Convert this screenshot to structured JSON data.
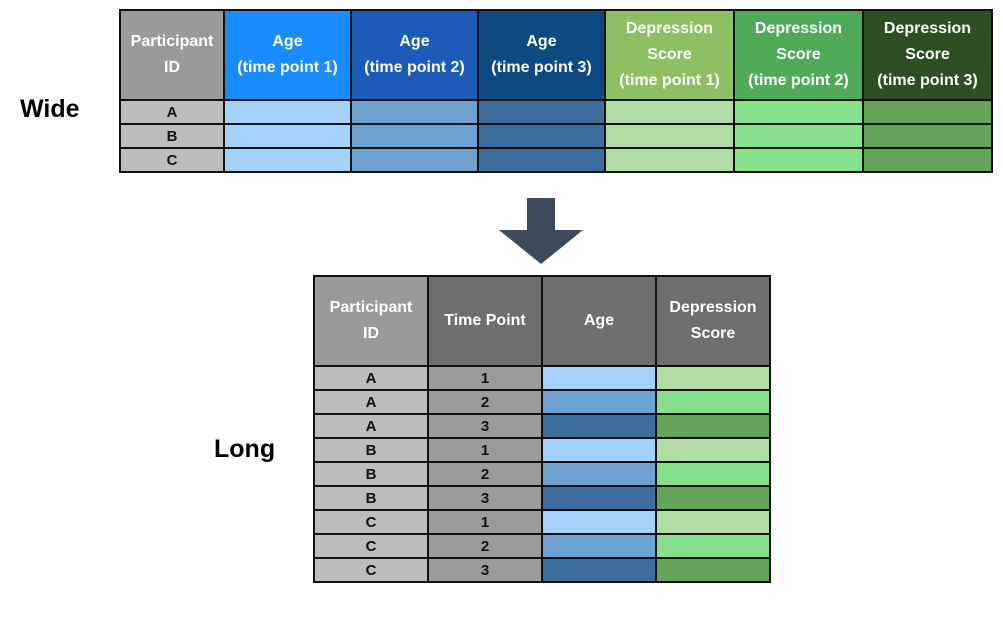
{
  "wide": {
    "label": "Wide",
    "headers": [
      {
        "text": "Participant\nID",
        "color": "#9a9a9a"
      },
      {
        "text": "Age\n(time point 1)",
        "color": "#1a8cff"
      },
      {
        "text": "Age\n(time point 2)",
        "color": "#1a5cb8"
      },
      {
        "text": "Age\n(time point 3)",
        "color": "#0d4a82"
      },
      {
        "text": "Depression\nScore\n(time point 1)",
        "color": "#8cc063"
      },
      {
        "text": "Depression\nScore\n(time point 2)",
        "color": "#4faa5a"
      },
      {
        "text": "Depression\nScore\n(time point 3)",
        "color": "#2e4f24"
      }
    ],
    "row_colors": [
      "#bdbdbd",
      "#a3d1fb",
      "#6ea1cf",
      "#3c6d9c",
      "#b2dca6",
      "#85df8b",
      "#64a35a"
    ],
    "rows": [
      "A",
      "B",
      "C"
    ]
  },
  "long": {
    "label": "Long",
    "headers": [
      {
        "text": "Participant\nID",
        "color": "#9a9a9a"
      },
      {
        "text": "Time Point",
        "color": "#6e6e6e"
      },
      {
        "text": "Age",
        "color": "#6e6e6e"
      },
      {
        "text": "Depression\nScore",
        "color": "#6e6e6e"
      }
    ],
    "id_color": "#bdbdbd",
    "time_color": "#9c9c9c",
    "age_colors": {
      "1": "#a3d1fb",
      "2": "#6ea1cf",
      "3": "#3c6d9c"
    },
    "dep_colors": {
      "1": "#b2dca6",
      "2": "#85df8b",
      "3": "#64a35a"
    },
    "rows": [
      {
        "id": "A",
        "tp": "1"
      },
      {
        "id": "A",
        "tp": "2"
      },
      {
        "id": "A",
        "tp": "3"
      },
      {
        "id": "B",
        "tp": "1"
      },
      {
        "id": "B",
        "tp": "2"
      },
      {
        "id": "B",
        "tp": "3"
      },
      {
        "id": "C",
        "tp": "1"
      },
      {
        "id": "C",
        "tp": "2"
      },
      {
        "id": "C",
        "tp": "3"
      }
    ]
  },
  "arrow": {
    "color": "#3d4a5c"
  }
}
